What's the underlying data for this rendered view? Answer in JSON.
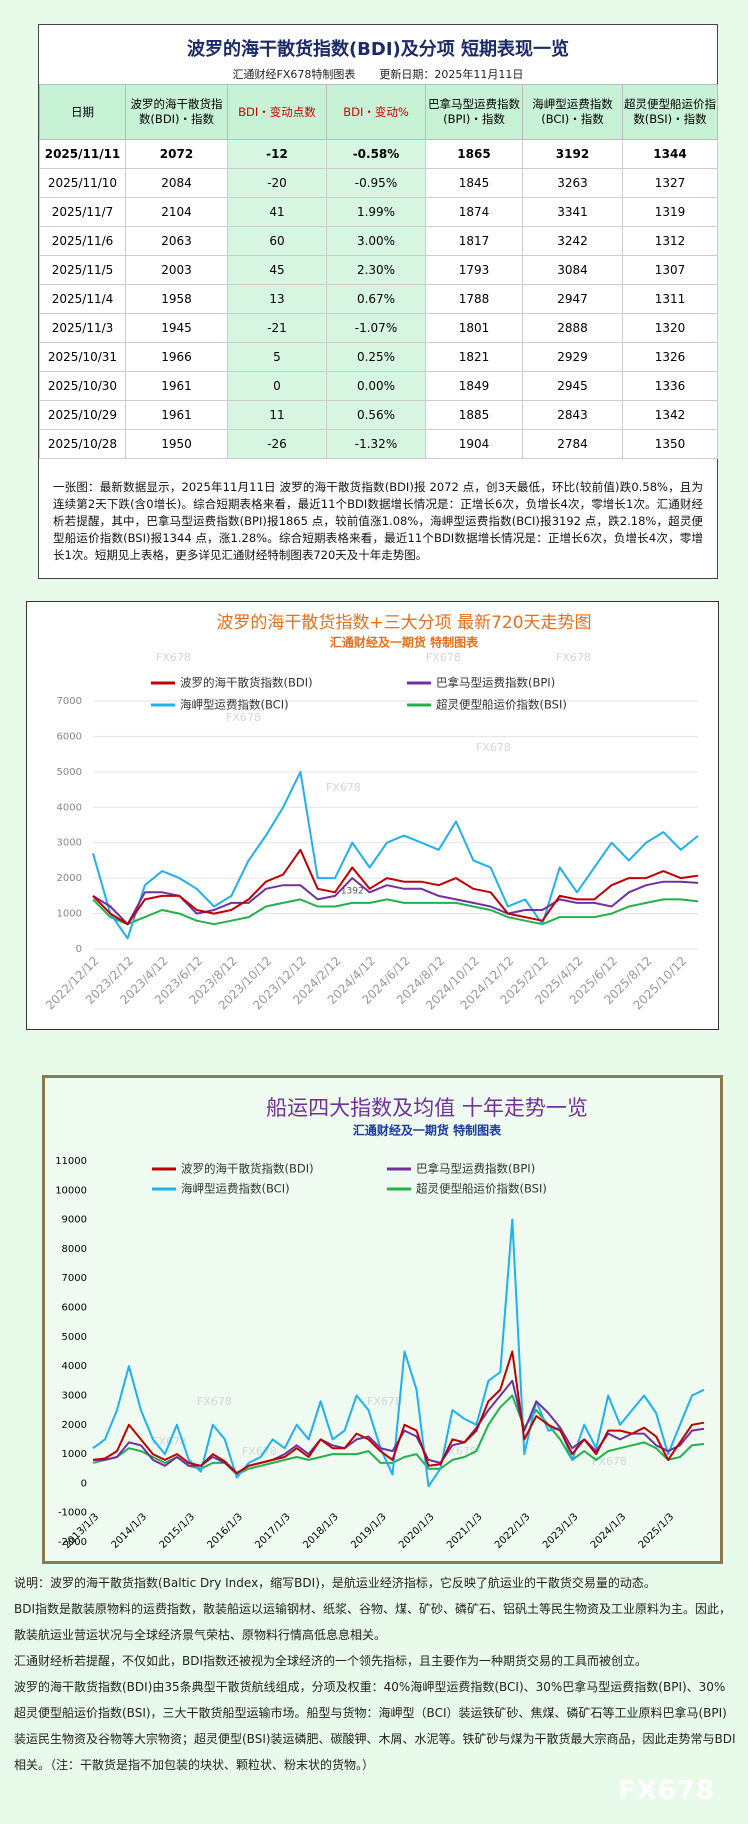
{
  "header": {
    "title": "波罗的海干散货指数(BDI)及分项  短期表现一览",
    "subtitle": "汇通财经FX678特制图表",
    "update": "更新日期：2025年11月11日"
  },
  "table": {
    "columns": [
      "日期",
      "波罗的海干散货指数(BDI)・指数",
      "BDI・变动点数",
      "BDI・变动%",
      "巴拿马型运费指数(BPI)・指数",
      "海岬型运费指数(BCI)・指数",
      "超灵便型船运价指数(BSI)・指数"
    ],
    "rows": [
      [
        "2025/11/11",
        "2072",
        "-12",
        "-0.58%",
        "1865",
        "3192",
        "1344"
      ],
      [
        "2025/11/10",
        "2084",
        "-20",
        "-0.95%",
        "1845",
        "3263",
        "1327"
      ],
      [
        "2025/11/7",
        "2104",
        "41",
        "1.99%",
        "1874",
        "3341",
        "1319"
      ],
      [
        "2025/11/6",
        "2063",
        "60",
        "3.00%",
        "1817",
        "3242",
        "1312"
      ],
      [
        "2025/11/5",
        "2003",
        "45",
        "2.30%",
        "1793",
        "3084",
        "1307"
      ],
      [
        "2025/11/4",
        "1958",
        "13",
        "0.67%",
        "1788",
        "2947",
        "1311"
      ],
      [
        "2025/11/3",
        "1945",
        "-21",
        "-1.07%",
        "1801",
        "2888",
        "1320"
      ],
      [
        "2025/10/31",
        "1966",
        "5",
        "0.25%",
        "1821",
        "2929",
        "1326"
      ],
      [
        "2025/10/30",
        "1961",
        "0",
        "0.00%",
        "1849",
        "2945",
        "1336"
      ],
      [
        "2025/10/29",
        "1961",
        "11",
        "0.56%",
        "1885",
        "2843",
        "1342"
      ],
      [
        "2025/10/28",
        "1950",
        "-26",
        "-1.32%",
        "1904",
        "2784",
        "1350"
      ]
    ]
  },
  "summary": "一张图：最新数据显示，2025年11月11日 波罗的海干散货指数(BDI)报 2072 点，创3天最低，环比(较前值)跌0.58%，且为连续第2天下跌(含0增长)。综合短期表格来看，最近11个BDI数据增长情况是：正增长6次，负增长4次，零增长1次。汇通财经析若提醒，其中，巴拿马型运费指数(BPI)报1865 点，较前值涨1.08%，海岬型运费指数(BCI)报3192 点，跌2.18%，超灵便型船运价指数(BSI)报1344 点，涨1.28%。综合短期表格来看，最近11个BDI数据增长情况是：正增长6次，负增长4次，零增长1次。短期见上表格，更多详见汇通财经特制图表720天及十年走势图。",
  "chart_data": [
    {
      "type": "line",
      "title": "波罗的海干散货指数+三大分项  最新720天走势图",
      "subtitle": "汇通财经及一期货  特制图表",
      "annotation": "1392",
      "grid": true,
      "categories": [
        "2022/12/12",
        null,
        "2023/2/12",
        null,
        "2023/4/12",
        null,
        "2023/6/12",
        null,
        "2023/8/12",
        null,
        "2023/10/12",
        null,
        "2023/12/12",
        null,
        "2024/2/12",
        null,
        "2024/4/12",
        null,
        "2024/6/12",
        null,
        "2024/8/12",
        null,
        "2024/10/12",
        null,
        "2024/12/12",
        null,
        "2025/2/12",
        null,
        "2025/4/12",
        null,
        "2025/6/12",
        null,
        "2025/8/12",
        null,
        "2025/10/12",
        null
      ],
      "ylim": [
        0,
        7000
      ],
      "yticks": [
        0,
        1000,
        2000,
        3000,
        4000,
        5000,
        6000,
        7000
      ],
      "series": [
        {
          "name": "波罗的海干散货指数(BDI)",
          "color": "#c00000",
          "values": [
            1500,
            1000,
            700,
            1400,
            1500,
            1500,
            1100,
            1000,
            1100,
            1400,
            1900,
            2100,
            2800,
            1700,
            1600,
            2300,
            1700,
            2000,
            1900,
            1900,
            1800,
            2000,
            1700,
            1600,
            1000,
            900,
            800,
            1500,
            1400,
            1400,
            1800,
            2000,
            2000,
            2200,
            2000,
            2072
          ]
        },
        {
          "name": "巴拿马型运费指数(BPI)",
          "color": "#7030a0",
          "values": [
            1500,
            1200,
            700,
            1600,
            1600,
            1500,
            1000,
            1100,
            1300,
            1300,
            1700,
            1800,
            1800,
            1400,
            1500,
            2000,
            1600,
            1800,
            1700,
            1700,
            1500,
            1400,
            1300,
            1200,
            1000,
            1100,
            1100,
            1400,
            1300,
            1300,
            1200,
            1600,
            1800,
            1900,
            1900,
            1865
          ]
        },
        {
          "name": "海岬型运费指数(BCI)",
          "color": "#1fb0f0",
          "values": [
            2700,
            1000,
            300,
            1800,
            2200,
            2000,
            1700,
            1200,
            1500,
            2500,
            3200,
            4000,
            5000,
            2000,
            2000,
            3000,
            2300,
            3000,
            3200,
            3000,
            2800,
            3600,
            2500,
            2300,
            1200,
            1400,
            700,
            2300,
            1600,
            2300,
            3000,
            2500,
            3000,
            3300,
            2800,
            3192
          ]
        },
        {
          "name": "超灵便型船运价指数(BSI)",
          "color": "#22b14c",
          "values": [
            1400,
            900,
            700,
            900,
            1100,
            1000,
            800,
            700,
            800,
            900,
            1200,
            1300,
            1400,
            1200,
            1200,
            1300,
            1300,
            1400,
            1300,
            1300,
            1300,
            1300,
            1200,
            1100,
            900,
            800,
            700,
            900,
            900,
            900,
            1000,
            1200,
            1300,
            1400,
            1400,
            1344
          ]
        }
      ]
    },
    {
      "type": "line",
      "title": "船运四大指数及均值 十年走势一览",
      "subtitle": "汇通财经及一期货 特制图表",
      "grid": false,
      "categories": [
        "2013/1/3",
        null,
        null,
        null,
        "2014/1/3",
        null,
        null,
        null,
        "2015/1/3",
        null,
        null,
        null,
        "2016/1/3",
        null,
        null,
        null,
        "2017/1/3",
        null,
        null,
        null,
        "2018/1/3",
        null,
        null,
        null,
        "2019/1/3",
        null,
        null,
        null,
        "2020/1/3",
        null,
        null,
        null,
        "2021/1/3",
        null,
        null,
        null,
        "2022/1/3",
        null,
        null,
        null,
        "2023/1/3",
        null,
        null,
        null,
        "2024/1/3",
        null,
        null,
        null,
        "2025/1/3",
        null,
        null,
        null
      ],
      "ylim": [
        -2000,
        11000
      ],
      "yticks": [
        -2000,
        -1000,
        0,
        1000,
        2000,
        3000,
        4000,
        5000,
        6000,
        7000,
        8000,
        9000,
        10000,
        11000
      ],
      "series": [
        {
          "name": "波罗的海干散货指数(BDI)",
          "color": "#c00000",
          "values": [
            800,
            850,
            1100,
            2000,
            1500,
            1000,
            800,
            1000,
            700,
            600,
            1000,
            750,
            350,
            600,
            700,
            800,
            900,
            1200,
            900,
            1500,
            1200,
            1200,
            1700,
            1500,
            1100,
            800,
            2000,
            1800,
            600,
            650,
            1500,
            1400,
            1800,
            2800,
            3200,
            4500,
            1500,
            2300,
            2000,
            1800,
            1000,
            1500,
            1000,
            1800,
            1800,
            1700,
            1900,
            1600,
            800,
            1400,
            2000,
            2072
          ]
        },
        {
          "name": "巴拿马型运费指数(BPI)",
          "color": "#7030a0",
          "values": [
            800,
            800,
            900,
            1400,
            1300,
            800,
            600,
            900,
            600,
            600,
            900,
            700,
            350,
            600,
            700,
            800,
            1000,
            1300,
            1000,
            1500,
            1300,
            1200,
            1500,
            1600,
            1200,
            1100,
            1800,
            1600,
            800,
            700,
            1300,
            1400,
            1900,
            2500,
            3000,
            3500,
            1800,
            2800,
            2400,
            1900,
            1200,
            1500,
            1100,
            1700,
            1500,
            1700,
            1700,
            1300,
            1100,
            1300,
            1800,
            1865
          ]
        },
        {
          "name": "海岬型运费指数(BCI)",
          "color": "#1fb0f0",
          "values": [
            1200,
            1500,
            2500,
            4000,
            2500,
            1500,
            1000,
            2000,
            800,
            400,
            2000,
            1500,
            200,
            700,
            900,
            1500,
            1200,
            2000,
            1500,
            2800,
            1500,
            1800,
            3000,
            2500,
            1200,
            300,
            4500,
            3200,
            -100,
            500,
            2500,
            2200,
            2000,
            3500,
            3800,
            9000,
            1000,
            2800,
            1800,
            1900,
            800,
            2000,
            1200,
            3000,
            2000,
            2500,
            3000,
            2400,
            1000,
            2000,
            3000,
            3192
          ]
        },
        {
          "name": "超灵便型船运价指数(BSI)",
          "color": "#22b14c",
          "values": [
            700,
            800,
            900,
            1200,
            1100,
            900,
            700,
            900,
            600,
            500,
            700,
            700,
            300,
            500,
            600,
            700,
            800,
            900,
            800,
            900,
            1000,
            1000,
            1000,
            1100,
            700,
            700,
            900,
            1000,
            500,
            500,
            800,
            900,
            1100,
            2000,
            2600,
            3000,
            1900,
            2500,
            2000,
            1500,
            800,
            1100,
            800,
            1100,
            1200,
            1300,
            1400,
            1200,
            800,
            900,
            1300,
            1344
          ]
        }
      ]
    }
  ],
  "footer": [
    "说明：波罗的海干散货指数(Baltic Dry Index，缩写BDI)，是航运业经济指标，它反映了航运业的干散货交易量的动态。",
    "BDI指数是散装原物料的运费指数，散装船运以运输钢材、纸浆、谷物、煤、矿砂、磷矿石、铝矾土等民生物资及工业原料为主。因此，散装航运业营运状况与全球经济景气荣枯、原物料行情高低息息相关。",
    "汇通财经析若提醒，不仅如此，BDI指数还被视为全球经济的一个领先指标，且主要作为一种期货交易的工具而被创立。",
    "波罗的海干散货指数(BDI)由35条典型干散货航线组成，分项及权重：40%海岬型运费指数(BCI)、30%巴拿马型运费指数(BPI)、30%超灵便型船运价指数(BSI)，三大干散货船型运输市场。船型与货物：海岬型（BCI）装运铁矿砂、焦煤、磷矿石等工业原料巴拿马(BPI)装运民生物资及谷物等大宗物资；超灵便型(BSI)装运磷肥、碳酸钾、木屑、水泥等。铁矿砂与煤为干散货最大宗商品，因此走势常与BDI相关。（注：干散货是指不加包装的块状、颗粒状、粉末状的货物。）"
  ],
  "watermark": "FX678"
}
